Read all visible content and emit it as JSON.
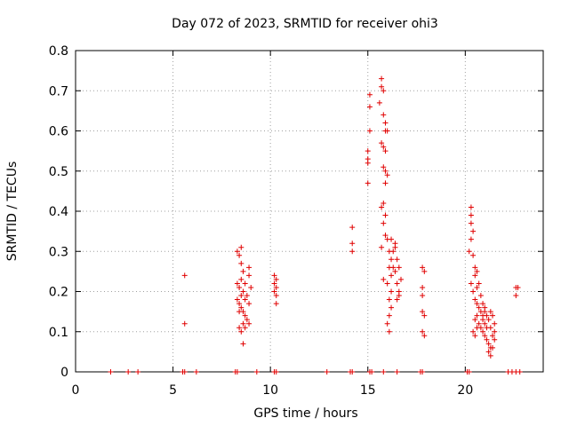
{
  "chart_data": {
    "type": "scatter",
    "title": "Day 072 of 2023, SRMTID for receiver ohi3",
    "xlabel": "GPS time / hours",
    "ylabel": "SRMTID / TECUs",
    "xlim": [
      0,
      24
    ],
    "ylim": [
      0,
      0.8
    ],
    "xticks": [
      0,
      5,
      10,
      15,
      20
    ],
    "yticks": [
      0,
      0.1,
      0.2,
      0.3,
      0.4,
      0.5,
      0.6,
      0.7,
      0.8
    ],
    "grid": true,
    "marker": "+",
    "color": "#e00000",
    "series": [
      {
        "name": "SRMTID",
        "points": [
          [
            1.8,
            0
          ],
          [
            2.7,
            0
          ],
          [
            3.2,
            0
          ],
          [
            5.5,
            0
          ],
          [
            5.6,
            0
          ],
          [
            6.2,
            0
          ],
          [
            8.2,
            0
          ],
          [
            8.3,
            0
          ],
          [
            9.3,
            0
          ],
          [
            10.2,
            0
          ],
          [
            10.3,
            0
          ],
          [
            12.9,
            0
          ],
          [
            14.1,
            0
          ],
          [
            14.2,
            0
          ],
          [
            15.1,
            0
          ],
          [
            15.2,
            0
          ],
          [
            15.8,
            0
          ],
          [
            16.5,
            0
          ],
          [
            17.7,
            0
          ],
          [
            17.8,
            0
          ],
          [
            20.1,
            0
          ],
          [
            20.2,
            0
          ],
          [
            22.2,
            0
          ],
          [
            22.4,
            0
          ],
          [
            22.6,
            0
          ],
          [
            22.8,
            0
          ],
          [
            5.6,
            0.24
          ],
          [
            5.6,
            0.12
          ],
          [
            8.3,
            0.3
          ],
          [
            8.4,
            0.29
          ],
          [
            8.5,
            0.31
          ],
          [
            8.5,
            0.27
          ],
          [
            8.6,
            0.25
          ],
          [
            8.3,
            0.22
          ],
          [
            8.4,
            0.21
          ],
          [
            8.5,
            0.23
          ],
          [
            8.6,
            0.2
          ],
          [
            8.7,
            0.22
          ],
          [
            8.3,
            0.18
          ],
          [
            8.4,
            0.17
          ],
          [
            8.5,
            0.16
          ],
          [
            8.6,
            0.15
          ],
          [
            8.7,
            0.14
          ],
          [
            8.8,
            0.19
          ],
          [
            8.9,
            0.17
          ],
          [
            8.8,
            0.13
          ],
          [
            8.4,
            0.11
          ],
          [
            8.5,
            0.1
          ],
          [
            8.6,
            0.12
          ],
          [
            8.7,
            0.11
          ],
          [
            8.9,
            0.12
          ],
          [
            8.9,
            0.26
          ],
          [
            8.9,
            0.24
          ],
          [
            9.0,
            0.21
          ],
          [
            8.6,
            0.07
          ],
          [
            8.5,
            0.19
          ],
          [
            8.4,
            0.15
          ],
          [
            8.7,
            0.18
          ],
          [
            10.2,
            0.24
          ],
          [
            10.3,
            0.23
          ],
          [
            10.2,
            0.22
          ],
          [
            10.3,
            0.21
          ],
          [
            10.2,
            0.2
          ],
          [
            10.3,
            0.19
          ],
          [
            10.3,
            0.17
          ],
          [
            14.2,
            0.36
          ],
          [
            14.2,
            0.32
          ],
          [
            14.2,
            0.3
          ],
          [
            15.1,
            0.66
          ],
          [
            15.1,
            0.6
          ],
          [
            15.0,
            0.55
          ],
          [
            15.0,
            0.53
          ],
          [
            15.0,
            0.52
          ],
          [
            15.1,
            0.69
          ],
          [
            15.0,
            0.47
          ],
          [
            15.7,
            0.73
          ],
          [
            15.7,
            0.71
          ],
          [
            15.8,
            0.7
          ],
          [
            15.6,
            0.67
          ],
          [
            15.8,
            0.64
          ],
          [
            15.9,
            0.62
          ],
          [
            15.9,
            0.6
          ],
          [
            16.0,
            0.6
          ],
          [
            15.7,
            0.57
          ],
          [
            15.8,
            0.56
          ],
          [
            15.9,
            0.55
          ],
          [
            15.8,
            0.51
          ],
          [
            15.9,
            0.5
          ],
          [
            16.0,
            0.49
          ],
          [
            15.9,
            0.47
          ],
          [
            15.7,
            0.41
          ],
          [
            15.8,
            0.42
          ],
          [
            15.9,
            0.39
          ],
          [
            15.8,
            0.37
          ],
          [
            15.9,
            0.34
          ],
          [
            16.0,
            0.33
          ],
          [
            15.7,
            0.31
          ],
          [
            16.1,
            0.3
          ],
          [
            16.2,
            0.28
          ],
          [
            16.1,
            0.26
          ],
          [
            16.2,
            0.24
          ],
          [
            16.3,
            0.26
          ],
          [
            15.8,
            0.23
          ],
          [
            16.0,
            0.22
          ],
          [
            16.2,
            0.2
          ],
          [
            16.1,
            0.18
          ],
          [
            16.2,
            0.16
          ],
          [
            16.1,
            0.14
          ],
          [
            16.0,
            0.12
          ],
          [
            16.1,
            0.1
          ],
          [
            16.3,
            0.3
          ],
          [
            16.4,
            0.31
          ],
          [
            16.5,
            0.28
          ],
          [
            16.4,
            0.25
          ],
          [
            16.5,
            0.22
          ],
          [
            16.6,
            0.2
          ],
          [
            16.5,
            0.18
          ],
          [
            16.6,
            0.19
          ],
          [
            16.4,
            0.32
          ],
          [
            16.6,
            0.26
          ],
          [
            16.7,
            0.23
          ],
          [
            16.2,
            0.33
          ],
          [
            17.8,
            0.26
          ],
          [
            17.9,
            0.25
          ],
          [
            17.8,
            0.21
          ],
          [
            17.8,
            0.19
          ],
          [
            17.8,
            0.15
          ],
          [
            17.9,
            0.14
          ],
          [
            17.8,
            0.1
          ],
          [
            17.9,
            0.09
          ],
          [
            20.3,
            0.41
          ],
          [
            20.3,
            0.39
          ],
          [
            20.3,
            0.37
          ],
          [
            20.4,
            0.35
          ],
          [
            20.3,
            0.33
          ],
          [
            20.2,
            0.3
          ],
          [
            20.4,
            0.29
          ],
          [
            20.5,
            0.26
          ],
          [
            20.5,
            0.24
          ],
          [
            20.6,
            0.25
          ],
          [
            20.3,
            0.22
          ],
          [
            20.4,
            0.2
          ],
          [
            20.5,
            0.18
          ],
          [
            20.6,
            0.17
          ],
          [
            20.7,
            0.16
          ],
          [
            20.8,
            0.15
          ],
          [
            20.5,
            0.13
          ],
          [
            20.6,
            0.14
          ],
          [
            20.7,
            0.12
          ],
          [
            20.8,
            0.11
          ],
          [
            20.9,
            0.13
          ],
          [
            21.0,
            0.12
          ],
          [
            20.4,
            0.1
          ],
          [
            20.5,
            0.09
          ],
          [
            20.6,
            0.11
          ],
          [
            20.9,
            0.1
          ],
          [
            21.0,
            0.09
          ],
          [
            21.1,
            0.08
          ],
          [
            21.2,
            0.07
          ],
          [
            21.3,
            0.06
          ],
          [
            21.2,
            0.05
          ],
          [
            21.3,
            0.04
          ],
          [
            21.4,
            0.09
          ],
          [
            21.5,
            0.12
          ],
          [
            21.4,
            0.14
          ],
          [
            21.3,
            0.15
          ],
          [
            21.2,
            0.13
          ],
          [
            21.1,
            0.11
          ],
          [
            20.7,
            0.22
          ],
          [
            20.6,
            0.21
          ],
          [
            20.8,
            0.19
          ],
          [
            20.9,
            0.17
          ],
          [
            21.0,
            0.15
          ],
          [
            21.1,
            0.14
          ],
          [
            21.5,
            0.1
          ],
          [
            21.4,
            0.06
          ],
          [
            21.5,
            0.08
          ],
          [
            21.3,
            0.11
          ],
          [
            21.0,
            0.16
          ],
          [
            20.9,
            0.14
          ],
          [
            22.6,
            0.21
          ],
          [
            22.7,
            0.21
          ],
          [
            22.6,
            0.19
          ]
        ]
      }
    ]
  }
}
